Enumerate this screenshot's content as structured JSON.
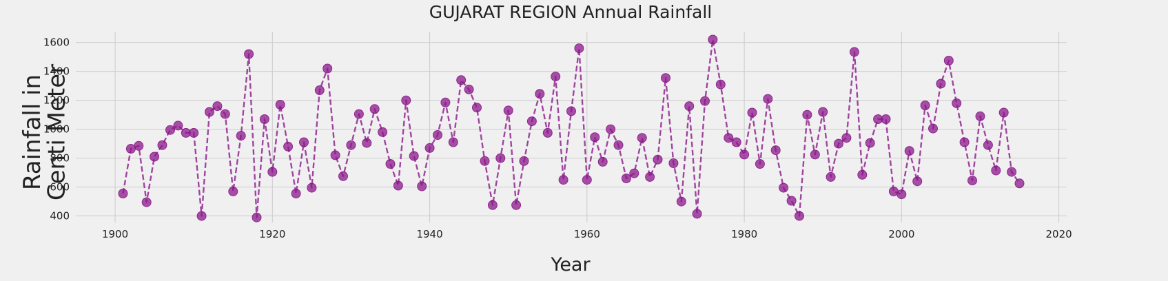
{
  "chart_data": {
    "type": "line",
    "title": "GUJARAT REGION Annual Rainfall",
    "xlabel": "Year",
    "ylabel": "Rainfall in\nCenti Meter",
    "xlim": [
      1895,
      2021
    ],
    "ylim": [
      355,
      1675
    ],
    "xticks": [
      1900,
      1920,
      1940,
      1960,
      1980,
      2000,
      2020
    ],
    "yticks": [
      400,
      600,
      800,
      1000,
      1200,
      1400,
      1600
    ],
    "grid": true,
    "series": [
      {
        "color": "#8b1a8b",
        "line_style": "dashed",
        "marker": "circle",
        "x": [
          1901,
          1902,
          1903,
          1904,
          1905,
          1906,
          1907,
          1908,
          1909,
          1910,
          1911,
          1912,
          1913,
          1914,
          1915,
          1916,
          1917,
          1918,
          1919,
          1920,
          1921,
          1922,
          1923,
          1924,
          1925,
          1926,
          1927,
          1928,
          1929,
          1930,
          1931,
          1932,
          1933,
          1934,
          1935,
          1936,
          1937,
          1938,
          1939,
          1940,
          1941,
          1942,
          1943,
          1944,
          1945,
          1946,
          1947,
          1948,
          1949,
          1950,
          1951,
          1952,
          1953,
          1954,
          1955,
          1956,
          1957,
          1958,
          1959,
          1960,
          1961,
          1962,
          1963,
          1964,
          1965,
          1966,
          1967,
          1968,
          1969,
          1970,
          1971,
          1972,
          1973,
          1974,
          1975,
          1976,
          1977,
          1978,
          1979,
          1980,
          1981,
          1982,
          1983,
          1984,
          1985,
          1986,
          1987,
          1988,
          1989,
          1990,
          1991,
          1992,
          1993,
          1994,
          1995,
          1996,
          1997,
          1998,
          1999,
          2000,
          2001,
          2002,
          2003,
          2004,
          2005,
          2006,
          2007,
          2008,
          2009,
          2010,
          2011,
          2012,
          2013,
          2014,
          2015
        ],
        "y": [
          555,
          865,
          885,
          495,
          810,
          890,
          995,
          1025,
          975,
          975,
          400,
          1120,
          1160,
          1105,
          570,
          955,
          1520,
          390,
          1070,
          705,
          1170,
          880,
          555,
          910,
          595,
          1270,
          1420,
          820,
          675,
          890,
          1105,
          905,
          1140,
          980,
          760,
          610,
          1200,
          815,
          605,
          870,
          960,
          1185,
          910,
          1340,
          1275,
          1150,
          780,
          475,
          800,
          1130,
          475,
          780,
          1055,
          1245,
          975,
          1365,
          650,
          1125,
          1560,
          650,
          945,
          775,
          1000,
          890,
          660,
          695,
          940,
          670,
          790,
          1355,
          765,
          500,
          1160,
          415,
          1195,
          1620,
          1310,
          940,
          910,
          825,
          1115,
          760,
          1210,
          855,
          595,
          505,
          400,
          1100,
          825,
          1120,
          670,
          900,
          940,
          1535,
          685,
          905,
          1070,
          1070,
          570,
          550,
          850,
          640,
          1165,
          1005,
          1315,
          1475,
          1180,
          910,
          645,
          1090,
          890,
          715,
          1115,
          705,
          625
        ]
      }
    ]
  }
}
